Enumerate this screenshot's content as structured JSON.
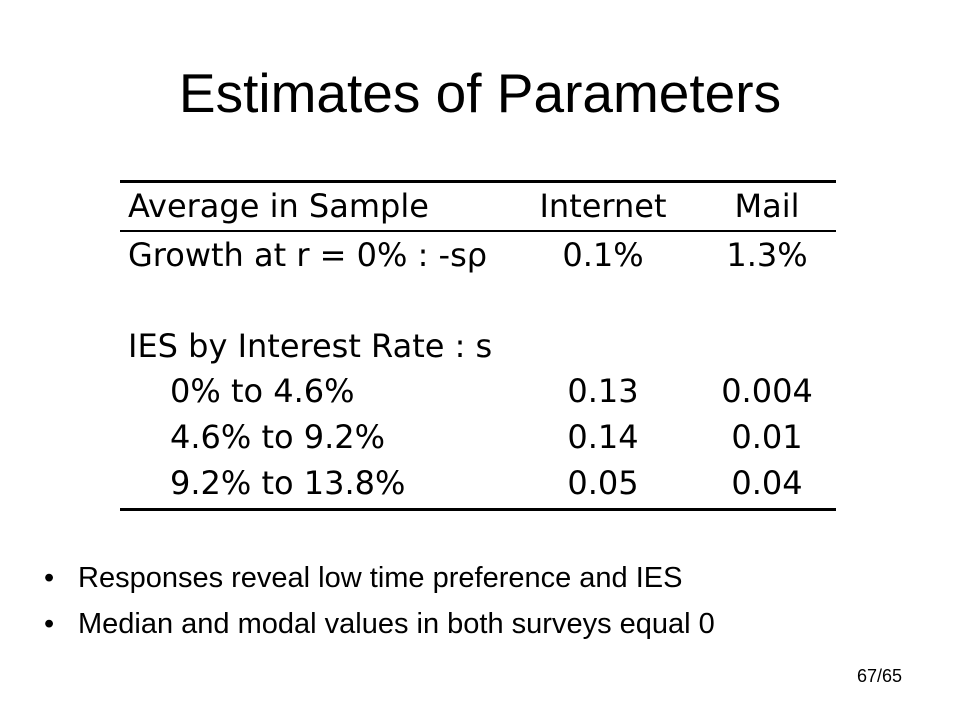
{
  "slide": {
    "title": "Estimates of Parameters",
    "page_number": "67/65"
  },
  "table": {
    "headers": {
      "label": "Average in Sample",
      "internet": "Internet",
      "mail": "Mail"
    },
    "growth_row": {
      "label": "Growth at r = 0% : -sρ",
      "internet": "0.1%",
      "mail": "1.3%"
    },
    "ies_heading": "IES by Interest Rate : s",
    "ies_rows": [
      {
        "label": "0% to 4.6%",
        "internet": "0.13",
        "mail": "0.004"
      },
      {
        "label": "4.6% to 9.2%",
        "internet": "0.14",
        "mail": "0.01"
      },
      {
        "label": "9.2% to 13.8%",
        "internet": "0.05",
        "mail": "0.04"
      }
    ]
  },
  "bullets": [
    {
      "marker": "•",
      "text": "Responses reveal low time preference and IES"
    },
    {
      "marker": "•",
      "text": "Median and modal values in both surveys equal 0"
    }
  ]
}
